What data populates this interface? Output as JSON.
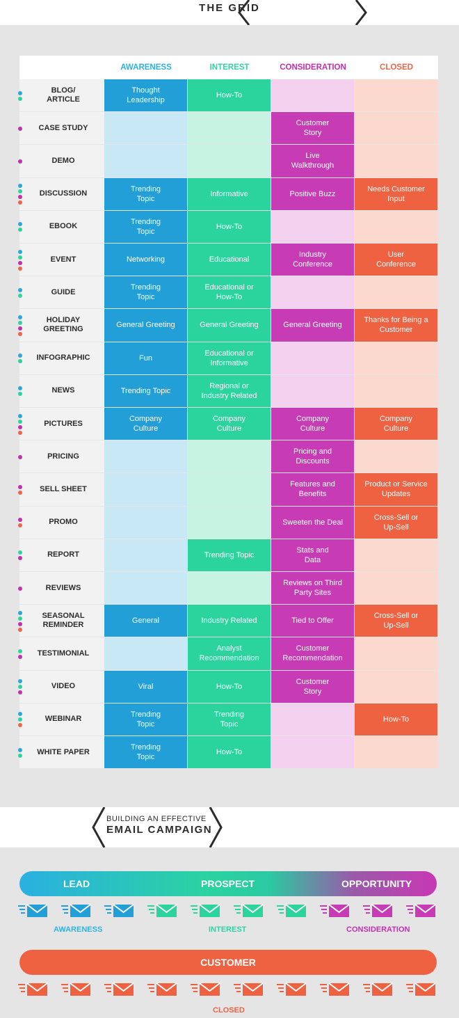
{
  "banner": {
    "title": "THE GRID"
  },
  "columns": [
    {
      "label": "AWARENESS",
      "color": "#2cb2e0"
    },
    {
      "label": "INTEREST",
      "color": "#2ed4a0"
    },
    {
      "label": "CONSIDERATION",
      "color": "#c42fb0"
    },
    {
      "label": "CLOSED",
      "color": "#ef6545"
    }
  ],
  "colors": {
    "awareness": "#239fd8",
    "interest": "#2bd39d",
    "consideration": "#c73bb4",
    "closed": "#ee6241",
    "awareness_light": "#c9e8f5",
    "interest_light": "#c7f3e3",
    "consideration_light": "#f3d0ee",
    "closed_light": "#fbd9cf"
  },
  "rows": [
    {
      "label": "BLOG/\nARTICLE",
      "cells": [
        "Thought\nLeadership",
        "How-To",
        "",
        ""
      ]
    },
    {
      "label": "CASE STUDY",
      "cells": [
        "",
        "",
        "Customer\nStory",
        ""
      ]
    },
    {
      "label": "DEMO",
      "cells": [
        "",
        "",
        "Live\nWalkthrough",
        ""
      ]
    },
    {
      "label": "DISCUSSION",
      "cells": [
        "Trending\nTopic",
        "Informative",
        "Positive Buzz",
        "Needs Customer\nInput"
      ]
    },
    {
      "label": "EBOOK",
      "cells": [
        "Trending\nTopic",
        "How-To",
        "",
        ""
      ]
    },
    {
      "label": "EVENT",
      "cells": [
        "Networking",
        "Educational",
        "Industry\nConference",
        "User\nConference"
      ]
    },
    {
      "label": "GUIDE",
      "cells": [
        "Trending\nTopic",
        "Educational or\nHow-To",
        "",
        ""
      ]
    },
    {
      "label": "HOLIDAY\nGREETING",
      "cells": [
        "General Greeting",
        "General Greeting",
        "General Greeting",
        "Thanks for Being a\nCustomer"
      ]
    },
    {
      "label": "INFOGRAPHIC",
      "cells": [
        "Fun",
        "Educational or\nInformative",
        "",
        ""
      ]
    },
    {
      "label": "NEWS",
      "cells": [
        "Trending Topic",
        "Regional or\nIndustry Related",
        "",
        ""
      ]
    },
    {
      "label": "PICTURES",
      "cells": [
        "Company\nCulture",
        "Company\nCulture",
        "Company\nCulture",
        "Company\nCulture"
      ]
    },
    {
      "label": "PRICING",
      "cells": [
        "",
        "",
        "Pricing and\nDiscounts",
        ""
      ]
    },
    {
      "label": "SELL SHEET",
      "cells": [
        "",
        "",
        "Features and\nBenefits",
        "Product or Service\nUpdates"
      ]
    },
    {
      "label": "PROMO",
      "cells": [
        "",
        "",
        "Sweeten the Deal",
        "Cross-Sell or\nUp-Sell"
      ]
    },
    {
      "label": "REPORT",
      "cells": [
        "",
        "Trending Topic",
        "Stats and\nData",
        ""
      ]
    },
    {
      "label": "REVIEWS",
      "cells": [
        "",
        "",
        "Reviews on Third\nParty Sites",
        ""
      ]
    },
    {
      "label": "SEASONAL\nREMINDER",
      "cells": [
        "General",
        "Industry Related",
        "Tied to Offer",
        "Cross-Sell or\nUp-Sell"
      ]
    },
    {
      "label": "TESTIMONIAL",
      "cells": [
        "",
        "Analyst\nRecommendation",
        "Customer\nRecommendation",
        ""
      ]
    },
    {
      "label": "VIDEO",
      "cells": [
        "Viral",
        "How-To",
        "Customer\nStory",
        ""
      ]
    },
    {
      "label": "WEBINAR",
      "cells": [
        "Trending\nTopic",
        "Trending\nTopic",
        "",
        "How-To"
      ]
    },
    {
      "label": "WHITE PAPER",
      "cells": [
        "Trending\nTopic",
        "How-To",
        "",
        ""
      ]
    }
  ],
  "email": {
    "title_line1": "BUILDING AN EFFECTIVE",
    "title_line2": "EMAIL CAMPAIGN",
    "pipeline": {
      "lead": "LEAD",
      "prospect": "PROSPECT",
      "opportunity": "OPPORTUNITY"
    },
    "stages": {
      "awareness": "AWARENESS",
      "interest": "INTEREST",
      "consideration": "CONSIDERATION"
    },
    "customer": "CUSTOMER",
    "closed": "CLOSED",
    "envelope_row1_stages": [
      "awareness",
      "awareness",
      "awareness",
      "interest",
      "interest",
      "interest",
      "interest",
      "consideration",
      "consideration",
      "consideration"
    ],
    "envelope_row2_stages": [
      "closed",
      "closed",
      "closed",
      "closed",
      "closed",
      "closed",
      "closed",
      "closed",
      "closed",
      "closed"
    ]
  }
}
